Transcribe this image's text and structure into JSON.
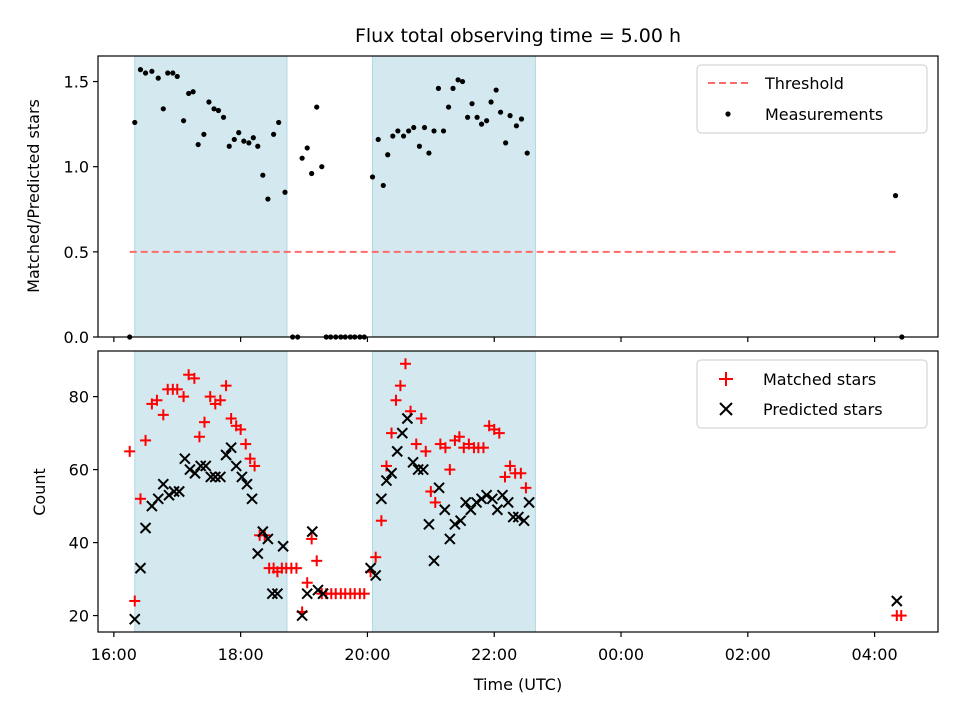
{
  "chart_data": [
    {
      "type": "scatter",
      "title": "Flux total observing time = 5.00 h",
      "xlabel": "",
      "ylabel": "Matched/Predicted stars",
      "xlim": [
        15.75,
        29.0
      ],
      "ylim": [
        0.0,
        1.65
      ],
      "yticks": [
        0.0,
        0.5,
        1.0,
        1.5
      ],
      "ytick_labels": [
        "0.0",
        "0.5",
        "1.0",
        "1.5"
      ],
      "shaded_intervals": [
        [
          16.33,
          18.73
        ],
        [
          20.08,
          22.65
        ]
      ],
      "threshold": {
        "name": "Threshold",
        "value": 0.5,
        "x_range": [
          16.25,
          28.33
        ],
        "color": "#ff6b6b"
      },
      "legend": {
        "position": "top-right",
        "entries": [
          "Threshold",
          "Measurements"
        ]
      },
      "series": [
        {
          "name": "Measurements",
          "color": "#000000",
          "points": [
            [
              16.25,
              0.0
            ],
            [
              16.33,
              1.26
            ],
            [
              16.42,
              1.57
            ],
            [
              16.5,
              1.55
            ],
            [
              16.6,
              1.56
            ],
            [
              16.7,
              1.52
            ],
            [
              16.78,
              1.34
            ],
            [
              16.85,
              1.55
            ],
            [
              16.93,
              1.55
            ],
            [
              17.0,
              1.53
            ],
            [
              17.1,
              1.27
            ],
            [
              17.18,
              1.43
            ],
            [
              17.25,
              1.44
            ],
            [
              17.33,
              1.13
            ],
            [
              17.42,
              1.19
            ],
            [
              17.5,
              1.38
            ],
            [
              17.58,
              1.34
            ],
            [
              17.65,
              1.33
            ],
            [
              17.73,
              1.29
            ],
            [
              17.82,
              1.12
            ],
            [
              17.9,
              1.16
            ],
            [
              17.97,
              1.2
            ],
            [
              18.05,
              1.15
            ],
            [
              18.13,
              1.14
            ],
            [
              18.2,
              1.17
            ],
            [
              18.27,
              1.12
            ],
            [
              18.35,
              0.95
            ],
            [
              18.43,
              0.81
            ],
            [
              18.52,
              1.19
            ],
            [
              18.6,
              1.26
            ],
            [
              18.7,
              0.85
            ],
            [
              18.82,
              0.0
            ],
            [
              18.9,
              0.0
            ],
            [
              18.97,
              1.05
            ],
            [
              19.05,
              1.11
            ],
            [
              19.12,
              0.96
            ],
            [
              19.2,
              1.35
            ],
            [
              19.28,
              1.0
            ],
            [
              19.35,
              0.0
            ],
            [
              19.42,
              0.0
            ],
            [
              19.5,
              0.0
            ],
            [
              19.58,
              0.0
            ],
            [
              19.65,
              0.0
            ],
            [
              19.73,
              0.0
            ],
            [
              19.8,
              0.0
            ],
            [
              19.88,
              0.0
            ],
            [
              19.95,
              0.0
            ],
            [
              20.08,
              0.94
            ],
            [
              20.17,
              1.16
            ],
            [
              20.25,
              0.89
            ],
            [
              20.32,
              1.07
            ],
            [
              20.4,
              1.18
            ],
            [
              20.48,
              1.21
            ],
            [
              20.57,
              1.18
            ],
            [
              20.65,
              1.21
            ],
            [
              20.73,
              1.23
            ],
            [
              20.82,
              1.12
            ],
            [
              20.9,
              1.23
            ],
            [
              20.97,
              1.08
            ],
            [
              21.05,
              1.21
            ],
            [
              21.12,
              1.46
            ],
            [
              21.2,
              1.21
            ],
            [
              21.28,
              1.35
            ],
            [
              21.35,
              1.46
            ],
            [
              21.43,
              1.51
            ],
            [
              21.5,
              1.5
            ],
            [
              21.58,
              1.29
            ],
            [
              21.65,
              1.37
            ],
            [
              21.73,
              1.29
            ],
            [
              21.8,
              1.25
            ],
            [
              21.88,
              1.27
            ],
            [
              21.95,
              1.38
            ],
            [
              22.03,
              1.45
            ],
            [
              22.1,
              1.32
            ],
            [
              22.18,
              1.14
            ],
            [
              22.25,
              1.3
            ],
            [
              22.35,
              1.24
            ],
            [
              22.43,
              1.28
            ],
            [
              22.52,
              1.08
            ],
            [
              28.33,
              0.83
            ],
            [
              28.43,
              0.0
            ]
          ]
        }
      ]
    },
    {
      "type": "scatter",
      "title": "",
      "xlabel": "Time (UTC)",
      "ylabel": "Count",
      "xlim": [
        15.75,
        29.0
      ],
      "ylim": [
        15.5,
        92.5
      ],
      "xticks": [
        16,
        18,
        20,
        22,
        24,
        26,
        28
      ],
      "xtick_labels": [
        "16:00",
        "18:00",
        "20:00",
        "22:00",
        "00:00",
        "02:00",
        "04:00"
      ],
      "yticks": [
        20,
        40,
        60,
        80
      ],
      "ytick_labels": [
        "20",
        "40",
        "60",
        "80"
      ],
      "shaded_intervals": [
        [
          16.33,
          18.73
        ],
        [
          20.08,
          22.65
        ]
      ],
      "legend": {
        "position": "top-right",
        "entries": [
          "Matched stars",
          "Predicted stars"
        ]
      },
      "series": [
        {
          "name": "Matched stars",
          "marker": "plus",
          "color": "#ff0000",
          "points": [
            [
              16.25,
              65
            ],
            [
              16.33,
              24
            ],
            [
              16.42,
              52
            ],
            [
              16.5,
              68
            ],
            [
              16.6,
              78
            ],
            [
              16.68,
              79
            ],
            [
              16.78,
              75
            ],
            [
              16.85,
              82
            ],
            [
              16.93,
              82
            ],
            [
              17.0,
              82
            ],
            [
              17.1,
              80
            ],
            [
              17.18,
              86
            ],
            [
              17.27,
              85
            ],
            [
              17.35,
              69
            ],
            [
              17.43,
              73
            ],
            [
              17.52,
              80
            ],
            [
              17.6,
              78
            ],
            [
              17.68,
              79
            ],
            [
              17.77,
              83
            ],
            [
              17.85,
              74
            ],
            [
              17.93,
              72
            ],
            [
              18.0,
              71
            ],
            [
              18.08,
              67
            ],
            [
              18.15,
              63
            ],
            [
              18.22,
              61
            ],
            [
              18.3,
              42
            ],
            [
              18.38,
              42
            ],
            [
              18.45,
              33
            ],
            [
              18.52,
              33
            ],
            [
              18.58,
              32
            ],
            [
              18.65,
              33
            ],
            [
              18.72,
              33
            ],
            [
              18.8,
              33
            ],
            [
              18.88,
              33
            ],
            [
              18.97,
              21
            ],
            [
              19.05,
              29
            ],
            [
              19.12,
              41
            ],
            [
              19.2,
              35
            ],
            [
              19.28,
              26
            ],
            [
              19.35,
              26
            ],
            [
              19.43,
              26
            ],
            [
              19.5,
              26
            ],
            [
              19.58,
              26
            ],
            [
              19.65,
              26
            ],
            [
              19.73,
              26
            ],
            [
              19.8,
              26
            ],
            [
              19.88,
              26
            ],
            [
              19.95,
              26
            ],
            [
              20.05,
              32
            ],
            [
              20.13,
              36
            ],
            [
              20.22,
              46
            ],
            [
              20.3,
              61
            ],
            [
              20.38,
              70
            ],
            [
              20.45,
              79
            ],
            [
              20.52,
              83
            ],
            [
              20.6,
              89
            ],
            [
              20.68,
              76
            ],
            [
              20.77,
              67
            ],
            [
              20.85,
              74
            ],
            [
              20.92,
              65
            ],
            [
              21.0,
              54
            ],
            [
              21.07,
              51
            ],
            [
              21.15,
              67
            ],
            [
              21.23,
              66
            ],
            [
              21.3,
              60
            ],
            [
              21.38,
              68
            ],
            [
              21.45,
              69
            ],
            [
              21.52,
              66
            ],
            [
              21.6,
              67
            ],
            [
              21.68,
              66
            ],
            [
              21.75,
              66
            ],
            [
              21.83,
              66
            ],
            [
              21.92,
              72
            ],
            [
              22.0,
              71
            ],
            [
              22.08,
              70
            ],
            [
              22.17,
              58
            ],
            [
              22.25,
              61
            ],
            [
              22.33,
              59
            ],
            [
              22.42,
              59
            ],
            [
              22.5,
              55
            ],
            [
              28.35,
              20
            ],
            [
              28.42,
              20
            ]
          ]
        },
        {
          "name": "Predicted stars",
          "marker": "x",
          "color": "#000000",
          "points": [
            [
              16.33,
              19
            ],
            [
              16.42,
              33
            ],
            [
              16.5,
              44
            ],
            [
              16.6,
              50
            ],
            [
              16.7,
              52
            ],
            [
              16.78,
              56
            ],
            [
              16.87,
              53
            ],
            [
              16.95,
              54
            ],
            [
              17.03,
              54
            ],
            [
              17.12,
              63
            ],
            [
              17.2,
              60
            ],
            [
              17.28,
              59
            ],
            [
              17.37,
              61
            ],
            [
              17.45,
              61
            ],
            [
              17.53,
              58
            ],
            [
              17.6,
              58
            ],
            [
              17.68,
              58
            ],
            [
              17.77,
              64
            ],
            [
              17.85,
              66
            ],
            [
              17.93,
              61
            ],
            [
              18.02,
              58
            ],
            [
              18.1,
              56
            ],
            [
              18.18,
              52
            ],
            [
              18.27,
              37
            ],
            [
              18.35,
              43
            ],
            [
              18.43,
              41
            ],
            [
              18.5,
              26
            ],
            [
              18.58,
              26
            ],
            [
              18.67,
              39
            ],
            [
              18.97,
              20
            ],
            [
              19.05,
              26
            ],
            [
              19.13,
              43
            ],
            [
              19.22,
              27
            ],
            [
              19.3,
              26
            ],
            [
              20.05,
              33
            ],
            [
              20.13,
              31
            ],
            [
              20.22,
              52
            ],
            [
              20.3,
              57
            ],
            [
              20.38,
              59
            ],
            [
              20.47,
              65
            ],
            [
              20.55,
              70
            ],
            [
              20.63,
              74
            ],
            [
              20.72,
              62
            ],
            [
              20.8,
              60
            ],
            [
              20.88,
              60
            ],
            [
              20.97,
              45
            ],
            [
              21.05,
              35
            ],
            [
              21.13,
              55
            ],
            [
              21.22,
              49
            ],
            [
              21.3,
              41
            ],
            [
              21.38,
              45
            ],
            [
              21.47,
              46
            ],
            [
              21.55,
              51
            ],
            [
              21.63,
              49
            ],
            [
              21.72,
              51
            ],
            [
              21.8,
              52
            ],
            [
              21.88,
              53
            ],
            [
              21.97,
              52
            ],
            [
              22.05,
              49
            ],
            [
              22.13,
              53
            ],
            [
              22.22,
              51
            ],
            [
              22.3,
              47
            ],
            [
              22.38,
              47
            ],
            [
              22.47,
              46
            ],
            [
              22.55,
              51
            ],
            [
              28.35,
              24
            ]
          ]
        }
      ]
    }
  ]
}
